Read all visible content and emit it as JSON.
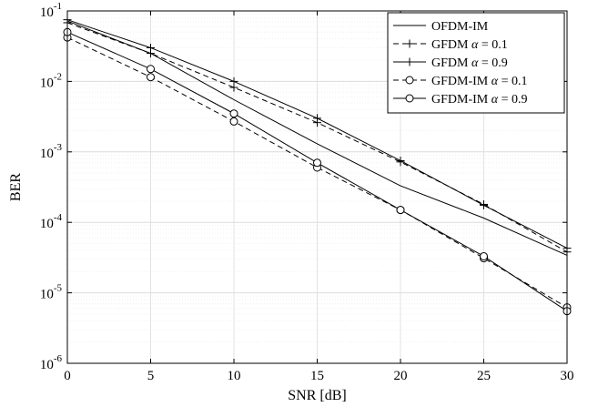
{
  "chart_data": {
    "type": "line",
    "xlabel": "SNR [dB]",
    "ylabel": "BER",
    "x_scale": "linear",
    "y_scale": "log",
    "xlim": [
      0,
      30
    ],
    "ylim": [
      1e-06,
      0.1
    ],
    "grid": true,
    "legend_position": "top-right",
    "x_ticks": [
      0,
      5,
      10,
      15,
      20,
      25,
      30
    ],
    "x_tick_labels": [
      "0",
      "5",
      "10",
      "15",
      "20",
      "25",
      "30"
    ],
    "y_ticks": [
      1e-06,
      1e-05,
      0.0001,
      0.001,
      0.01,
      0.1
    ],
    "y_tick_labels": [
      {
        "base": "10",
        "exp": "-6"
      },
      {
        "base": "10",
        "exp": "-5"
      },
      {
        "base": "10",
        "exp": "-4"
      },
      {
        "base": "10",
        "exp": "-3"
      },
      {
        "base": "10",
        "exp": "-2"
      },
      {
        "base": "10",
        "exp": "-1"
      }
    ],
    "x": [
      0,
      5,
      10,
      15,
      20,
      25,
      30
    ],
    "series": [
      {
        "name": "OFDM-IM",
        "legend_base": "OFDM-IM",
        "alpha": "",
        "line_style": "solid",
        "marker": "none",
        "values": [
          0.072,
          0.025,
          0.0055,
          0.0013,
          0.00033,
          0.000115,
          3.4e-05
        ]
      },
      {
        "name": "GFDM α = 0.1",
        "legend_base": "GFDM",
        "alpha": "0.1",
        "line_style": "dashed",
        "marker": "plus",
        "values": [
          0.068,
          0.025,
          0.0082,
          0.0026,
          0.00072,
          0.00018,
          3.8e-05
        ]
      },
      {
        "name": "GFDM α = 0.9",
        "legend_base": "GFDM",
        "alpha": "0.9",
        "line_style": "solid",
        "marker": "plus",
        "values": [
          0.075,
          0.03,
          0.01,
          0.003,
          0.00075,
          0.000175,
          4.3e-05
        ]
      },
      {
        "name": "GFDM-IM α = 0.1",
        "legend_base": "GFDM-IM",
        "alpha": "0.1",
        "line_style": "dashed",
        "marker": "circle",
        "values": [
          0.042,
          0.0115,
          0.0027,
          0.0006,
          0.00015,
          3.1e-05,
          6.2e-06
        ]
      },
      {
        "name": "GFDM-IM α = 0.9",
        "legend_base": "GFDM-IM",
        "alpha": "0.9",
        "line_style": "solid",
        "marker": "circle",
        "values": [
          0.05,
          0.015,
          0.0035,
          0.0007,
          0.00015,
          3.3e-05,
          5.5e-06
        ]
      }
    ]
  }
}
